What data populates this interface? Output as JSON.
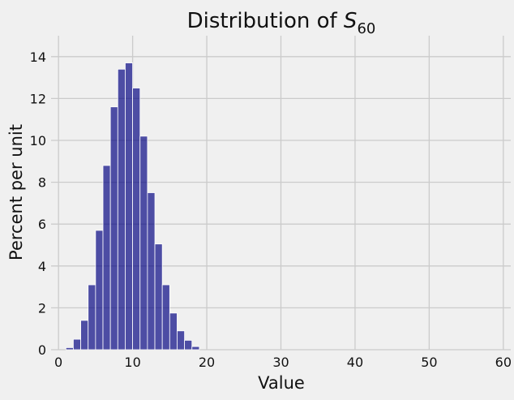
{
  "chart_data": {
    "type": "bar",
    "title_main": "Distribution of ",
    "title_symbol": "S",
    "title_subscript": "60",
    "xlabel": "Value",
    "ylabel": "Percent per unit",
    "xlim": [
      -1,
      61
    ],
    "ylim": [
      0,
      15
    ],
    "xticks": [
      0,
      10,
      20,
      30,
      40,
      50,
      60
    ],
    "yticks": [
      0,
      2,
      4,
      6,
      8,
      10,
      12,
      14
    ],
    "grid": true,
    "bin_width": 1,
    "bins": [
      {
        "x": 1,
        "value": 0.1
      },
      {
        "x": 2,
        "value": 0.5
      },
      {
        "x": 3,
        "value": 1.4
      },
      {
        "x": 4,
        "value": 3.1
      },
      {
        "x": 5,
        "value": 5.7
      },
      {
        "x": 6,
        "value": 8.8
      },
      {
        "x": 7,
        "value": 11.6
      },
      {
        "x": 8,
        "value": 13.4
      },
      {
        "x": 9,
        "value": 13.7
      },
      {
        "x": 10,
        "value": 12.5
      },
      {
        "x": 11,
        "value": 10.2
      },
      {
        "x": 12,
        "value": 7.5
      },
      {
        "x": 13,
        "value": 5.05
      },
      {
        "x": 14,
        "value": 3.1
      },
      {
        "x": 15,
        "value": 1.75
      },
      {
        "x": 16,
        "value": 0.9
      },
      {
        "x": 17,
        "value": 0.45
      },
      {
        "x": 18,
        "value": 0.15
      }
    ]
  }
}
